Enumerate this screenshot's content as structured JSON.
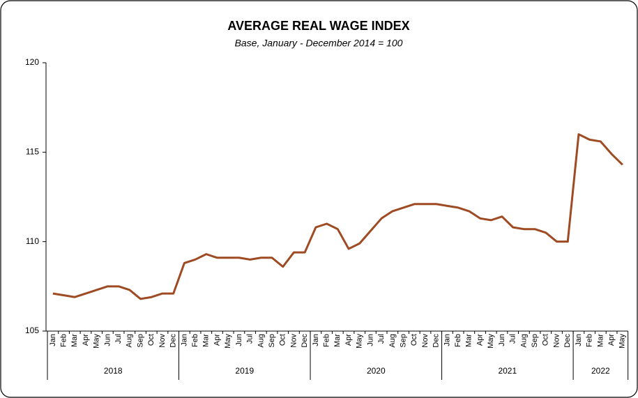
{
  "chart_data": {
    "type": "line",
    "title": "AVERAGE REAL WAGE INDEX",
    "subtitle": "Base, January - December 2014 = 100",
    "groups": [
      {
        "label": "2018",
        "categories": [
          "Jan",
          "Feb",
          "Mar",
          "Apr",
          "May",
          "Jun",
          "Jul",
          "Aug",
          "Sep",
          "Oct",
          "Nov",
          "Dec"
        ]
      },
      {
        "label": "2019",
        "categories": [
          "Jan",
          "Feb",
          "Mar",
          "Apr",
          "May",
          "Jun",
          "Jul",
          "Aug",
          "Sep",
          "Oct",
          "Nov",
          "Dec"
        ]
      },
      {
        "label": "2020",
        "categories": [
          "Jan",
          "Feb",
          "Mar",
          "Apr",
          "May",
          "Jun",
          "Jul",
          "Aug",
          "Sep",
          "Oct",
          "Nov",
          "Dec"
        ]
      },
      {
        "label": "2021",
        "categories": [
          "Jan",
          "Feb",
          "Mar",
          "Apr",
          "May",
          "Jun",
          "Jul",
          "Aug",
          "Sep",
          "Oct",
          "Nov",
          "Dec"
        ]
      },
      {
        "label": "2022",
        "categories": [
          "Jan",
          "Feb",
          "Mar",
          "Apr",
          "May"
        ]
      }
    ],
    "values": [
      107.1,
      107.0,
      106.9,
      107.1,
      107.3,
      107.5,
      107.5,
      107.3,
      106.8,
      106.9,
      107.1,
      107.1,
      108.8,
      109.0,
      109.3,
      109.1,
      109.1,
      109.1,
      109.0,
      109.1,
      109.1,
      108.6,
      109.4,
      109.4,
      110.8,
      111.0,
      110.7,
      109.6,
      109.9,
      110.6,
      111.3,
      111.7,
      111.9,
      112.1,
      112.1,
      112.1,
      112.0,
      111.9,
      111.7,
      111.3,
      111.2,
      111.4,
      110.8,
      110.7,
      110.7,
      110.5,
      110.0,
      110.0,
      116.0,
      115.7,
      115.6,
      114.9,
      114.3
    ],
    "color": "#9e4a22",
    "ylim": [
      105,
      120
    ],
    "yticks": [
      105,
      110,
      115,
      120
    ],
    "grid": false
  }
}
